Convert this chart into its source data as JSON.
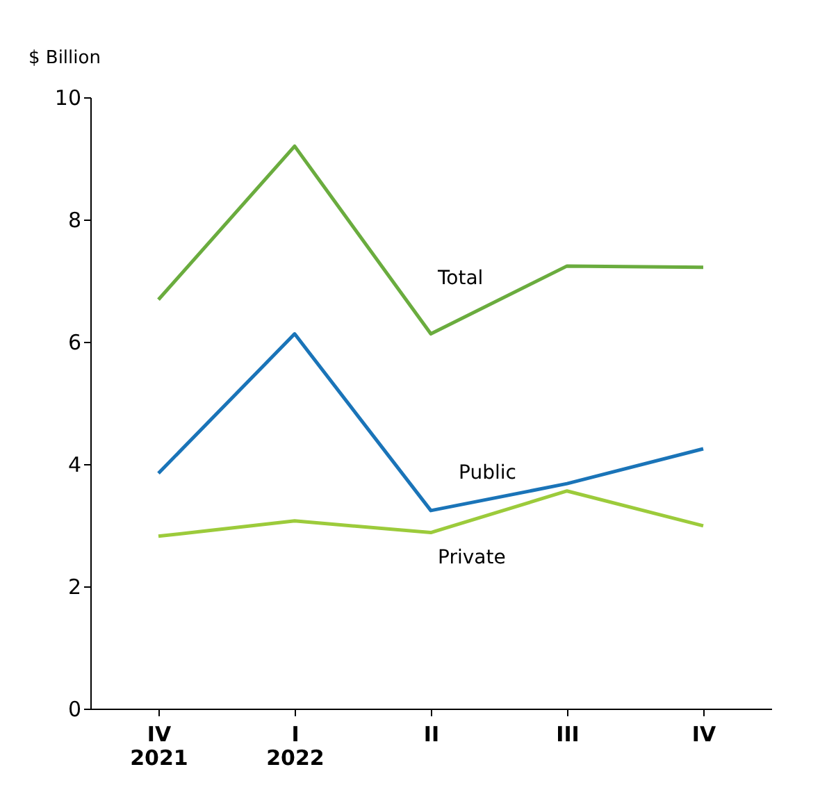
{
  "chart_data": {
    "type": "line",
    "ylabel": "$ Billion",
    "categories": [
      "IV\n2021",
      "I\n2022",
      "II",
      "III",
      "IV"
    ],
    "series": [
      {
        "name": "Total",
        "color": "#6aac3e",
        "values": [
          6.69,
          9.2,
          6.13,
          7.24,
          7.22
        ]
      },
      {
        "name": "Public",
        "color": "#1a74b8",
        "values": [
          3.85,
          6.13,
          3.24,
          3.68,
          4.25
        ]
      },
      {
        "name": "Private",
        "color": "#9ccb3b",
        "values": [
          2.82,
          3.07,
          2.88,
          3.56,
          2.99
        ]
      }
    ],
    "ylim": [
      0,
      10
    ],
    "yticks": [
      0,
      2,
      4,
      6,
      8,
      10
    ],
    "grid": false,
    "legend": false,
    "marker": "none",
    "line_style": "solid"
  }
}
